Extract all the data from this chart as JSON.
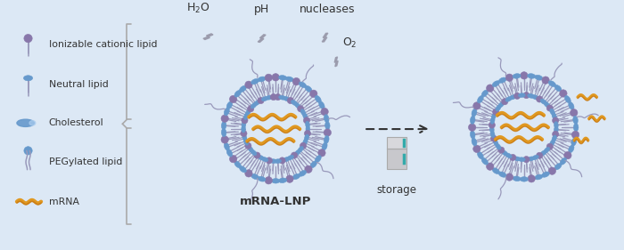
{
  "bg_color": "#dce8f5",
  "legend_items": [
    {
      "label": "Ionizable cationic lipid",
      "type": "lipid_dark"
    },
    {
      "label": "Neutral lipid",
      "type": "lipid_blue"
    },
    {
      "label": "Cholesterol",
      "type": "cholesterol"
    },
    {
      "label": "PEGylated lipid",
      "type": "pegylated"
    },
    {
      "label": "mRNA",
      "type": "mrna"
    }
  ],
  "label_lnp": "mRNA-LNP",
  "label_storage": "storage",
  "label_h2o": "H$_2$O",
  "label_ph": "pH",
  "label_nucleases": "nucleases",
  "label_o2": "O$_2$",
  "col_head_dark": "#8877aa",
  "col_head_blue": "#6699cc",
  "col_head_oval": "#6699cc",
  "col_tail": "#9999bb",
  "col_mrna": "#e09820",
  "col_mrna2": "#c07010",
  "col_lightning": "#999aaa",
  "col_arrow": "#333333",
  "col_text": "#333333",
  "col_bracket": "#aaaaaa",
  "col_fridge_body": "#cccccc",
  "col_fridge_top": "#dddddd",
  "col_fridge_handle": "#33aaaa"
}
